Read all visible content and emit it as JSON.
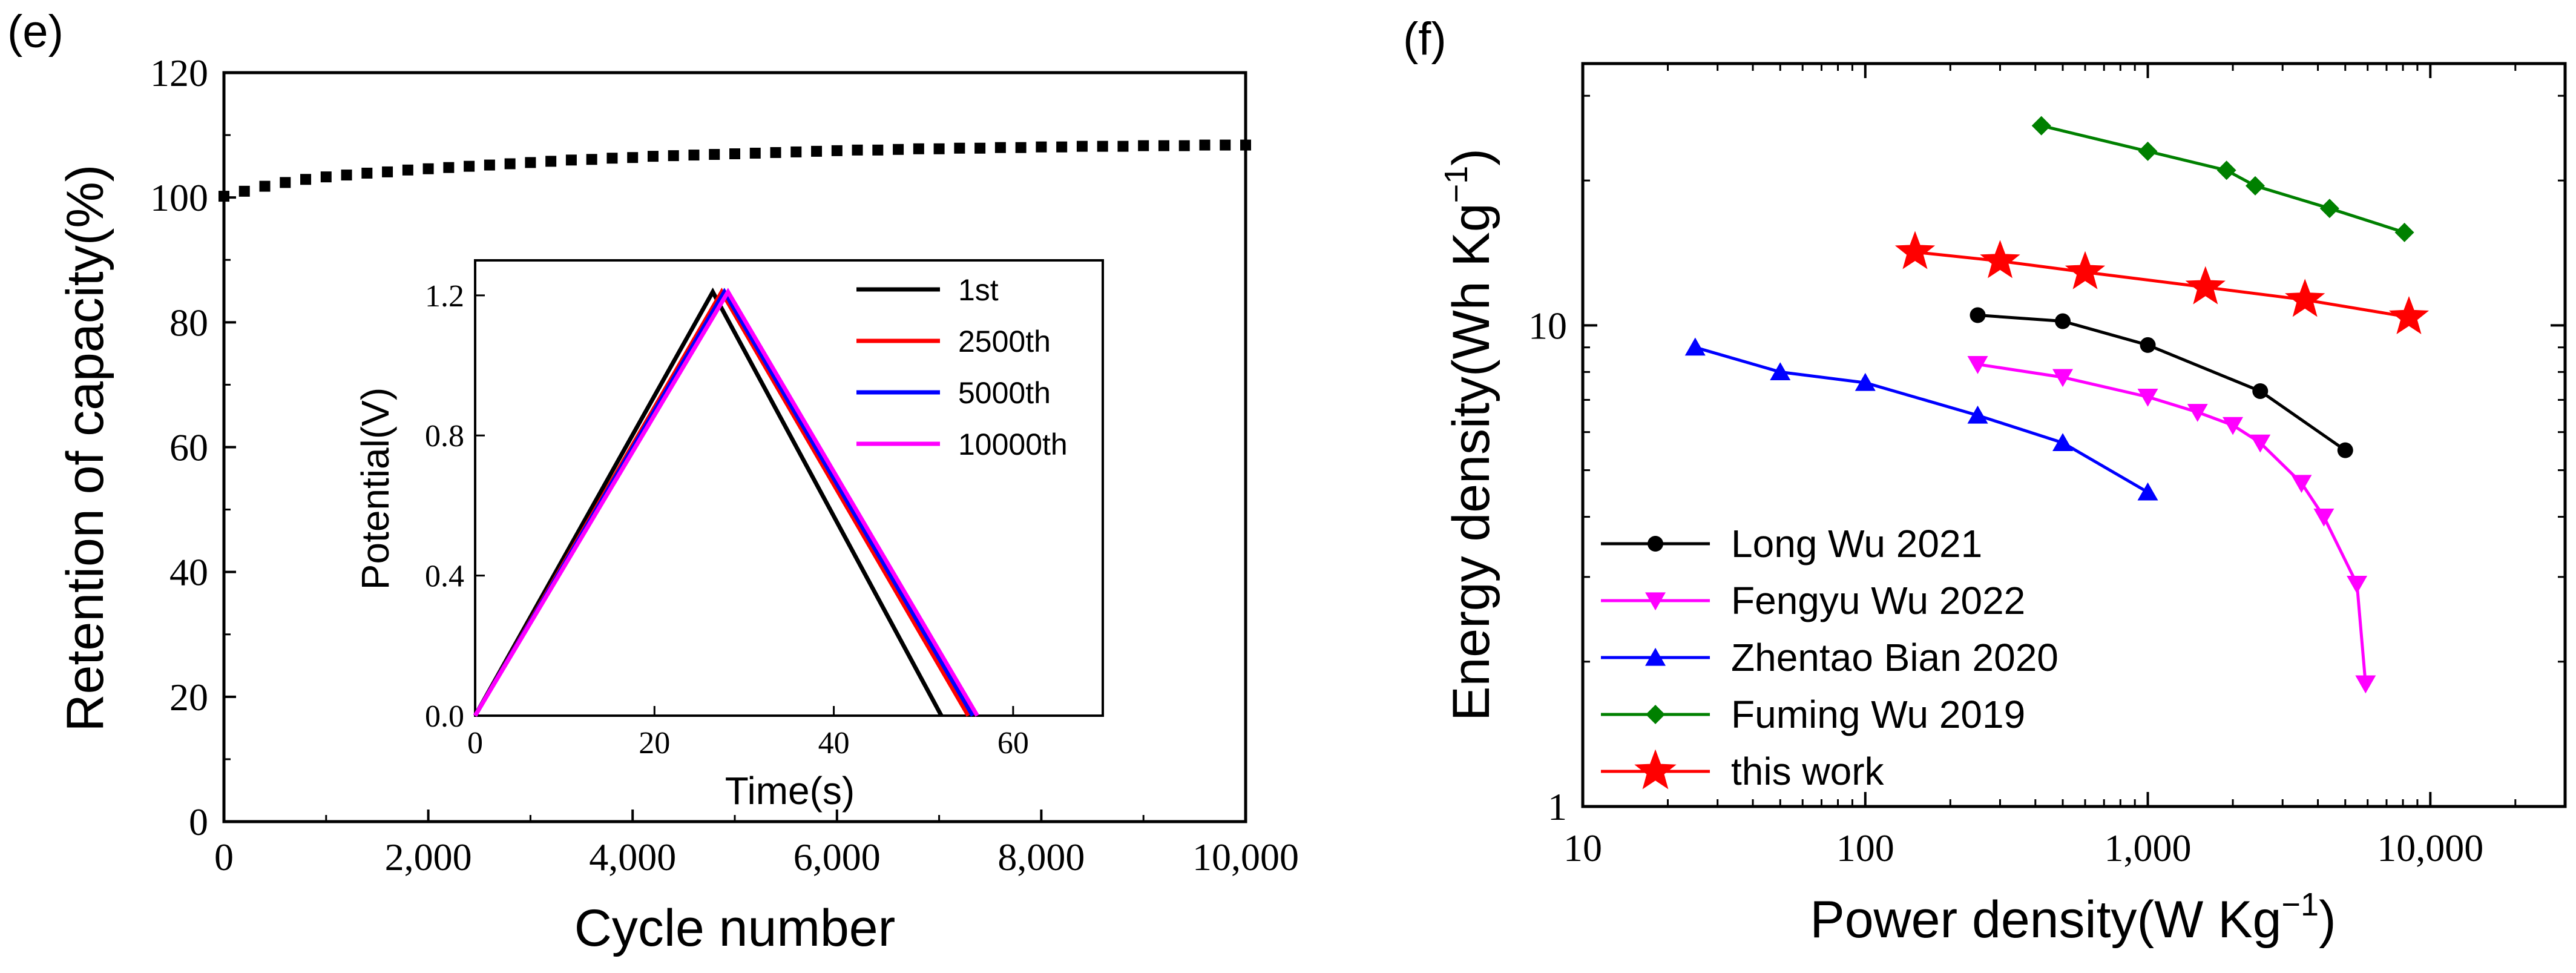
{
  "chart_data": [
    {
      "panel": "(e)",
      "type": "scatter",
      "title": "",
      "xlabel": "Cycle number",
      "ylabel": "Retention of capacity(%)",
      "xlim": [
        0,
        10000
      ],
      "ylim": [
        0,
        120
      ],
      "xticks": [
        "0",
        "2,000",
        "4,000",
        "6,000",
        "8,000",
        "10,000"
      ],
      "yticks": [
        "0",
        "20",
        "40",
        "60",
        "80",
        "100",
        "120"
      ],
      "series": [
        {
          "name": "retention",
          "color": "#000000",
          "x": [
            0,
            200,
            400,
            600,
            800,
            1000,
            1200,
            1400,
            1600,
            1800,
            2000,
            2200,
            2400,
            2600,
            2800,
            3000,
            3200,
            3400,
            3600,
            3800,
            4000,
            4200,
            4400,
            4600,
            4800,
            5000,
            5200,
            5400,
            5600,
            5800,
            6000,
            6200,
            6400,
            6600,
            6800,
            7000,
            7200,
            7400,
            7600,
            7800,
            8000,
            8200,
            8400,
            8600,
            8800,
            9000,
            9200,
            9400,
            9600,
            9800,
            10000
          ],
          "y": [
            100.2,
            101.0,
            101.8,
            102.4,
            102.9,
            103.3,
            103.6,
            103.9,
            104.1,
            104.4,
            104.6,
            104.8,
            105.0,
            105.2,
            105.4,
            105.6,
            105.8,
            106.0,
            106.1,
            106.3,
            106.4,
            106.6,
            106.7,
            106.8,
            106.9,
            107.0,
            107.1,
            107.2,
            107.3,
            107.4,
            107.5,
            107.6,
            107.6,
            107.7,
            107.8,
            107.8,
            107.9,
            107.9,
            108.0,
            108.0,
            108.1,
            108.1,
            108.2,
            108.2,
            108.2,
            108.3,
            108.3,
            108.3,
            108.4,
            108.4,
            108.4
          ]
        }
      ],
      "inset": {
        "type": "line",
        "xlabel": "Time(s)",
        "ylabel": "Potential(V)",
        "xlim": [
          0,
          70
        ],
        "ylim": [
          0,
          1.3
        ],
        "xticks": [
          "0",
          "20",
          "40",
          "60"
        ],
        "yticks": [
          "0.0",
          "0.4",
          "0.8",
          "1.2"
        ],
        "series": [
          {
            "name": "1st",
            "color": "#000000",
            "x": [
              0,
              26.5,
              52
            ],
            "y": [
              0,
              1.21,
              0
            ]
          },
          {
            "name": "2500th",
            "color": "#ff0000",
            "x": [
              0,
              27.5,
              55
            ],
            "y": [
              0,
              1.21,
              0
            ]
          },
          {
            "name": "5000th",
            "color": "#0000ff",
            "x": [
              0,
              27.8,
              55.5
            ],
            "y": [
              0,
              1.21,
              0
            ]
          },
          {
            "name": "10000th",
            "color": "#ff00ff",
            "x": [
              0,
              28.2,
              56
            ],
            "y": [
              0,
              1.21,
              0
            ]
          }
        ]
      }
    },
    {
      "panel": "(f)",
      "type": "line",
      "title": "",
      "xlabel": "Power density(W Kg",
      "xlabel_sup": "−1",
      "xlabel_end": ")",
      "ylabel": "Energy density(Wh Kg",
      "ylabel_sup": "−1",
      "ylabel_end": ")",
      "xscale": "log",
      "yscale": "log",
      "xlim": [
        10,
        30000
      ],
      "ylim": [
        1,
        35
      ],
      "xticks": [
        "10",
        "100",
        "1,000",
        "10,000"
      ],
      "yticks": [
        "1",
        "10"
      ],
      "legend_position": "bottom-left",
      "series": [
        {
          "name": "Long Wu 2021",
          "color": "#000000",
          "marker": "circle",
          "x": [
            250,
            500,
            1000,
            2500,
            5000
          ],
          "y": [
            10.5,
            10.2,
            9.1,
            7.3,
            5.5
          ]
        },
        {
          "name": "Fengyu Wu 2022",
          "color": "#ff00ff",
          "marker": "triangle-down",
          "x": [
            250,
            500,
            1000,
            1500,
            2000,
            2500,
            3500,
            4200,
            5500,
            5900
          ],
          "y": [
            8.3,
            7.8,
            7.1,
            6.6,
            6.2,
            5.7,
            4.7,
            4.0,
            2.9,
            1.8
          ]
        },
        {
          "name": "Zhentao Bian 2020",
          "color": "#0000ff",
          "marker": "triangle-up",
          "x": [
            25,
            50,
            100,
            250,
            500,
            1000
          ],
          "y": [
            9.0,
            8.0,
            7.6,
            6.5,
            5.7,
            4.5
          ]
        },
        {
          "name": "Fuming Wu 2019",
          "color": "#008000",
          "marker": "diamond",
          "x": [
            420,
            1000,
            1900,
            2400,
            4400,
            8100
          ],
          "y": [
            26.0,
            23.0,
            21.0,
            19.5,
            17.5,
            15.6
          ]
        },
        {
          "name": "this work",
          "color": "#ff0000",
          "marker": "star",
          "x": [
            150,
            300,
            600,
            1600,
            3600,
            8400
          ],
          "y": [
            14.2,
            13.6,
            12.9,
            12.0,
            11.3,
            10.4
          ]
        }
      ]
    }
  ]
}
